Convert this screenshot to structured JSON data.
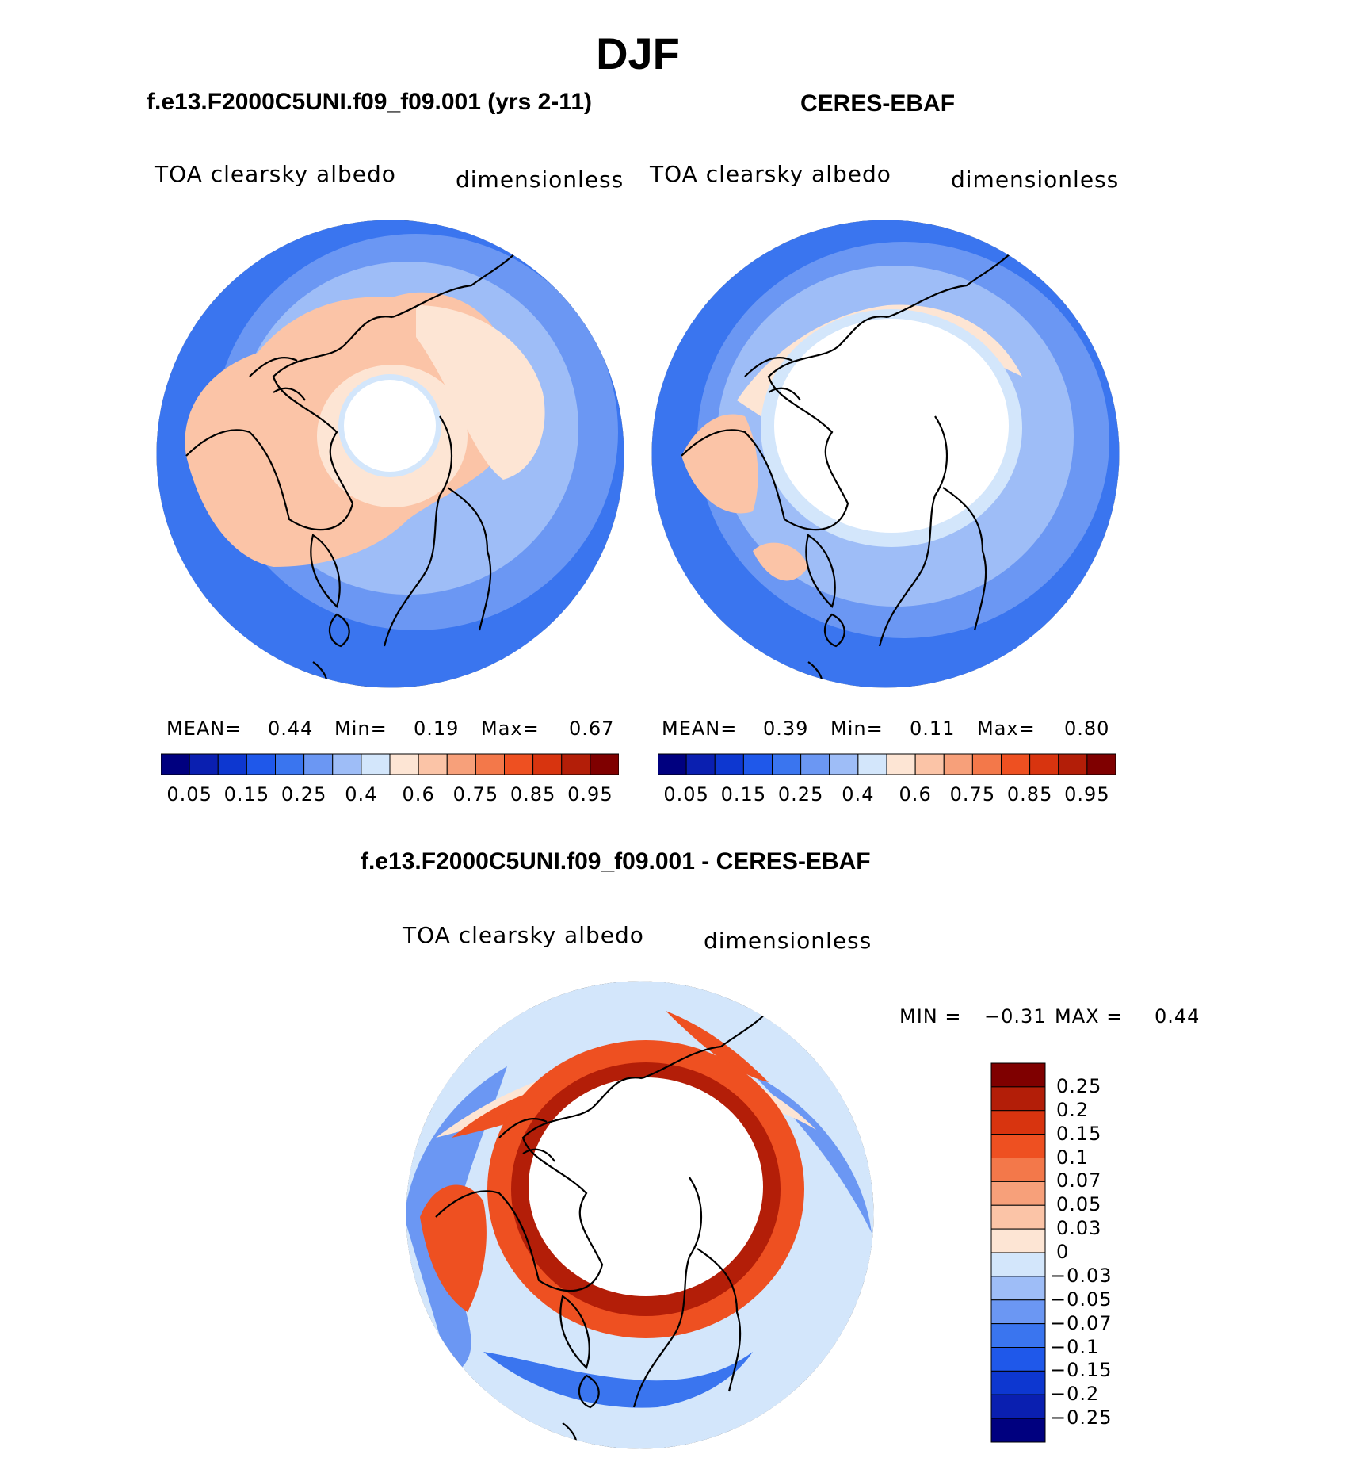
{
  "title": "DJF",
  "top_panels": [
    {
      "case_title": "f.e13.F2000C5UNI.f09_f09.001 (yrs 2-11)",
      "variable": "TOA clearsky albedo",
      "units": "dimensionless",
      "stats": {
        "mean_label": "MEAN=",
        "mean": "0.44",
        "min_label": "Min=",
        "min": "0.19",
        "max_label": "Max=",
        "max": "0.67"
      }
    },
    {
      "case_title": "CERES-EBAF",
      "variable": "TOA clearsky albedo",
      "units": "dimensionless",
      "stats": {
        "mean_label": "MEAN=",
        "mean": "0.39",
        "min_label": "Min=",
        "min": "0.11",
        "max_label": "Max=",
        "max": "0.80"
      }
    }
  ],
  "diff_panel": {
    "case_title": "f.e13.F2000C5UNI.f09_f09.001 - CERES-EBAF",
    "variable": "TOA clearsky albedo",
    "units": "dimensionless",
    "minmax": {
      "min_label": "MIN =",
      "min": "−0.31",
      "max_label": "MAX =",
      "max": "0.44"
    }
  },
  "colorbar_abs": {
    "colors": [
      "#00007f",
      "#0a1fb0",
      "#0d37d0",
      "#1f58ea",
      "#3a75ef",
      "#6b97f3",
      "#9ebdf7",
      "#d3e6fb",
      "#fde5d4",
      "#fbc4a7",
      "#f7a07a",
      "#f3784a",
      "#ee5021",
      "#d8340f",
      "#b31e08",
      "#7f0000"
    ],
    "labels": [
      "0.05",
      "0.15",
      "0.25",
      "0.4",
      "0.6",
      "0.75",
      "0.85",
      "0.95"
    ]
  },
  "colorbar_diff": {
    "colors": [
      "#00007f",
      "#0a1fb0",
      "#0d37d0",
      "#1f58ea",
      "#3a75ef",
      "#6b97f3",
      "#9ebdf7",
      "#d3e6fb",
      "#fde5d4",
      "#fbc4a7",
      "#f7a07a",
      "#f3784a",
      "#ee5021",
      "#d8340f",
      "#b31e08",
      "#7f0000"
    ],
    "labels": [
      "0.25",
      "0.2",
      "0.15",
      "0.1",
      "0.07",
      "0.05",
      "0.03",
      "0",
      "−0.03",
      "−0.05",
      "−0.07",
      "−0.1",
      "−0.15",
      "−0.2",
      "−0.25"
    ]
  },
  "map_colors": {
    "ocean_deep": "#3a75ef",
    "ocean_mid": "#6b97f3",
    "ocean_light": "#9ebdf7",
    "land_warm": "#fbc4a7",
    "land_pale": "#fde5d4",
    "pale_blue": "#d3e6fb",
    "diff_red": "#ee5021",
    "diff_darkred": "#b31e08"
  }
}
